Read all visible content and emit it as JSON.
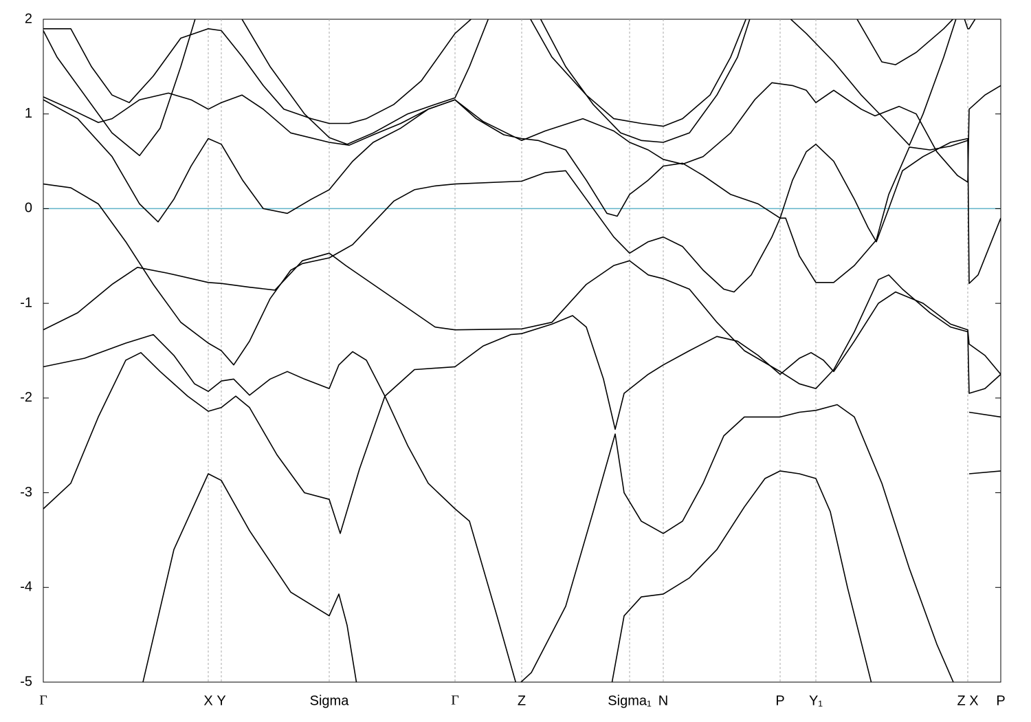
{
  "chart_data": {
    "type": "line",
    "color": "#000000",
    "hline": 0,
    "hline_color": "#5fb3c8",
    "grid": true,
    "xlim": [
      0,
      1393
    ],
    "ylim": [
      -5,
      2
    ],
    "yticks": [
      -5,
      -4,
      -3,
      -2,
      -1,
      0,
      1,
      2
    ],
    "xticks": [
      {
        "value": 0,
        "label": "Γ"
      },
      {
        "value": 240,
        "label": "X"
      },
      {
        "value": 259,
        "label": "Y"
      },
      {
        "value": 416,
        "label": "Sigma"
      },
      {
        "value": 599,
        "label": "Γ"
      },
      {
        "value": 696,
        "label": "Z"
      },
      {
        "value": 853,
        "label": "Sigma₁"
      },
      {
        "value": 902,
        "label": "N"
      },
      {
        "value": 1072,
        "label": "P"
      },
      {
        "value": 1124,
        "label": "Y₁"
      },
      {
        "value": 1345,
        "label": "Z X"
      },
      {
        "value": 1393,
        "label": "P"
      }
    ],
    "series": [
      {
        "x": [
          145,
          190,
          240,
          259,
          300,
          360,
          416,
          430,
          442,
          460
        ],
        "values": [
          -5,
          -3.6,
          -2.8,
          -2.87,
          -3.4,
          -4.05,
          -4.3,
          -4.07,
          -4.4,
          -5.2
        ]
      },
      {
        "x": [
          0,
          40,
          80,
          120,
          142,
          170,
          210,
          240,
          259,
          280,
          300,
          340,
          380,
          416,
          432,
          460,
          497,
          540,
          599
        ],
        "values": [
          -3.17,
          -2.9,
          -2.2,
          -1.6,
          -1.52,
          -1.72,
          -1.98,
          -2.14,
          -2.1,
          -1.98,
          -2.1,
          -2.6,
          -3.0,
          -3.07,
          -3.43,
          -2.75,
          -1.98,
          -1.7,
          -1.67
        ]
      },
      {
        "x": [
          0,
          60,
          120,
          160,
          190,
          220,
          240,
          259,
          277,
          300,
          330,
          355,
          380,
          416,
          430,
          450,
          470,
          497,
          530,
          560,
          599,
          620,
          660,
          695
        ],
        "values": [
          -1.67,
          -1.58,
          -1.42,
          -1.33,
          -1.55,
          -1.85,
          -1.93,
          -1.82,
          -1.8,
          -1.97,
          -1.8,
          -1.72,
          -1.8,
          -1.9,
          -1.65,
          -1.51,
          -1.6,
          -1.98,
          -2.5,
          -2.9,
          -3.17,
          -3.3,
          -4.3,
          -5.2
        ]
      },
      {
        "x": [
          599,
          640,
          680,
          696,
          740,
          770,
          790,
          815,
          832,
          845,
          880,
          902,
          940,
          980,
          1010,
          1040,
          1072,
          1100,
          1117,
          1135,
          1150,
          1180,
          1215,
          1240,
          1280,
          1320,
          1345,
          1347,
          1370,
          1393
        ],
        "values": [
          -1.67,
          -1.45,
          -1.33,
          -1.32,
          -1.22,
          -1.13,
          -1.25,
          -1.8,
          -2.33,
          -1.95,
          -1.75,
          -1.65,
          -1.5,
          -1.35,
          -1.4,
          -1.55,
          -1.75,
          -1.58,
          -1.52,
          -1.6,
          -1.72,
          -1.4,
          -1.0,
          -0.88,
          -1.0,
          -1.22,
          -1.28,
          -1.43,
          -1.55,
          -1.75
        ]
      },
      {
        "x": [
          599,
          696,
          740,
          790,
          830,
          853,
          880,
          902,
          940,
          980,
          1020,
          1072,
          1100,
          1124,
          1150,
          1180,
          1215,
          1230,
          1250,
          1290,
          1320,
          1345,
          1347,
          1370,
          1393
        ],
        "values": [
          -1.28,
          -1.27,
          -1.2,
          -0.8,
          -0.6,
          -0.55,
          -0.7,
          -0.74,
          -0.85,
          -1.2,
          -1.5,
          -1.72,
          -1.85,
          -1.9,
          -1.7,
          -1.3,
          -0.75,
          -0.7,
          -0.85,
          -1.1,
          -1.25,
          -1.3,
          -1.95,
          -1.9,
          -1.75
        ]
      },
      {
        "x": [
          825,
          845,
          870,
          902,
          940,
          980,
          1020,
          1050,
          1072,
          1100,
          1124,
          1145,
          1170,
          1208
        ],
        "values": [
          -5.1,
          -4.3,
          -4.1,
          -4.07,
          -3.9,
          -3.6,
          -3.15,
          -2.85,
          -2.77,
          -2.8,
          -2.85,
          -3.2,
          -4.0,
          -5.1
        ]
      },
      {
        "x": [
          680,
          710,
          760,
          800,
          832,
          845,
          870,
          902,
          930,
          960,
          990,
          1020,
          1072,
          1100,
          1124,
          1155,
          1180,
          1220,
          1260,
          1300,
          1330
        ],
        "values": [
          -5.1,
          -4.9,
          -4.2,
          -3.2,
          -2.38,
          -3.0,
          -3.3,
          -3.43,
          -3.3,
          -2.9,
          -2.4,
          -2.2,
          -2.2,
          -2.15,
          -2.13,
          -2.07,
          -2.2,
          -2.9,
          -3.8,
          -4.6,
          -5.1
        ]
      },
      {
        "x": [
          1347,
          1393
        ],
        "values": [
          -2.15,
          -2.2
        ]
      },
      {
        "x": [
          1347,
          1393
        ],
        "values": [
          -2.8,
          -2.77
        ]
      },
      {
        "x": [
          0,
          40,
          80,
          120,
          160,
          200,
          240,
          259,
          277,
          300,
          330,
          360,
          377,
          416,
          450,
          480,
          510,
          540,
          570,
          599,
          696,
          730,
          760,
          790,
          810,
          830,
          853,
          880,
          902,
          930,
          960,
          990,
          1005,
          1030,
          1060,
          1072,
          1090,
          1110,
          1124,
          1150,
          1180,
          1200,
          1212,
          1230,
          1250,
          1280,
          1320,
          1345,
          1347,
          1360,
          1393
        ],
        "values": [
          0.26,
          0.22,
          0.05,
          -0.35,
          -0.8,
          -1.2,
          -1.42,
          -1.5,
          -1.65,
          -1.4,
          -0.95,
          -0.65,
          -0.58,
          -0.52,
          -0.38,
          -0.15,
          0.08,
          0.2,
          0.24,
          0.26,
          0.29,
          0.38,
          0.4,
          0.1,
          -0.1,
          -0.3,
          -0.47,
          -0.35,
          -0.3,
          -0.4,
          -0.65,
          -0.85,
          -0.88,
          -0.7,
          -0.3,
          -0.1,
          0.3,
          0.6,
          0.68,
          0.5,
          0.1,
          -0.2,
          -0.35,
          0.0,
          0.4,
          0.55,
          0.7,
          0.74,
          -0.79,
          -0.7,
          -0.1
        ]
      },
      {
        "x": [
          0,
          50,
          100,
          137,
          180,
          240,
          259,
          300,
          337,
          377,
          416,
          440,
          490,
          530,
          570,
          599
        ],
        "values": [
          -1.28,
          -1.1,
          -0.8,
          -0.62,
          -0.68,
          -0.78,
          -0.79,
          -0.83,
          -0.86,
          -0.55,
          -0.47,
          -0.6,
          -0.85,
          -1.05,
          -1.25,
          -1.28
        ]
      },
      {
        "x": [
          0,
          50,
          100,
          140,
          167,
          190,
          215,
          240,
          259,
          290,
          320,
          355,
          390,
          416,
          450,
          480,
          520,
          560,
          599,
          630,
          670,
          696,
          720,
          760,
          790,
          820,
          835,
          853,
          880,
          902,
          930,
          960,
          1000,
          1040,
          1072,
          1080,
          1100,
          1124,
          1150,
          1180,
          1212,
          1230,
          1260,
          1290,
          1320,
          1345
        ],
        "values": [
          1.15,
          0.95,
          0.55,
          0.05,
          -0.14,
          0.1,
          0.45,
          0.74,
          0.68,
          0.3,
          0.0,
          -0.05,
          0.1,
          0.2,
          0.5,
          0.7,
          0.85,
          1.05,
          1.15,
          0.95,
          0.78,
          0.74,
          0.72,
          0.62,
          0.3,
          -0.05,
          -0.08,
          0.15,
          0.3,
          0.45,
          0.48,
          0.35,
          0.15,
          0.05,
          -0.1,
          -0.1,
          -0.5,
          -0.78,
          -0.78,
          -0.6,
          -0.33,
          0.15,
          0.65,
          0.62,
          0.66,
          0.72
        ]
      },
      {
        "x": [
          0,
          20,
          60,
          100,
          140,
          170,
          200,
          225
        ],
        "values": [
          1.88,
          1.6,
          1.2,
          0.8,
          0.56,
          0.85,
          1.5,
          2.1
        ]
      },
      {
        "x": [
          0,
          40,
          70,
          100,
          125,
          160,
          200,
          240,
          259,
          290,
          320,
          350,
          390,
          416,
          445,
          470,
          510,
          550,
          599,
          630
        ],
        "values": [
          1.9,
          1.9,
          1.5,
          1.2,
          1.12,
          1.4,
          1.8,
          1.9,
          1.88,
          1.6,
          1.3,
          1.05,
          0.95,
          0.9,
          0.9,
          0.95,
          1.1,
          1.35,
          1.85,
          2.05
        ]
      },
      {
        "x": [
          0,
          40,
          80,
          100,
          140,
          182,
          215,
          240,
          259,
          289,
          320,
          360,
          416,
          445,
          480,
          520,
          560,
          599,
          640,
          696,
          730,
          785,
          830,
          853,
          880,
          902,
          930,
          960,
          1000,
          1035,
          1060,
          1090,
          1110,
          1124,
          1150,
          1190,
          1210,
          1245,
          1270,
          1300,
          1330,
          1345,
          1347,
          1370,
          1393
        ],
        "values": [
          1.18,
          1.05,
          0.91,
          0.95,
          1.15,
          1.22,
          1.15,
          1.05,
          1.12,
          1.2,
          1.05,
          0.8,
          0.7,
          0.67,
          0.78,
          0.9,
          1.05,
          1.15,
          0.92,
          0.72,
          0.82,
          0.95,
          0.82,
          0.7,
          0.62,
          0.52,
          0.47,
          0.55,
          0.8,
          1.15,
          1.33,
          1.3,
          1.25,
          1.12,
          1.25,
          1.05,
          0.98,
          1.08,
          1.0,
          0.6,
          0.35,
          0.28,
          1.05,
          1.2,
          1.3
        ]
      },
      {
        "x": [
          285,
          330,
          380,
          416,
          442,
          480,
          530,
          570,
          599,
          620,
          650
        ],
        "values": [
          2.05,
          1.5,
          1.0,
          0.75,
          0.68,
          0.8,
          1.0,
          1.1,
          1.17,
          1.5,
          2.05
        ]
      },
      {
        "x": [
          705,
          740,
          790,
          830,
          870,
          902,
          930,
          970,
          1000,
          1025
        ],
        "values": [
          2.05,
          1.6,
          1.2,
          0.95,
          0.9,
          0.87,
          0.95,
          1.2,
          1.6,
          2.05
        ]
      },
      {
        "x": [
          720,
          760,
          800,
          840,
          870,
          902,
          940,
          980,
          1010,
          1030
        ],
        "values": [
          2.05,
          1.5,
          1.1,
          0.8,
          0.72,
          0.7,
          0.8,
          1.2,
          1.6,
          2.05
        ]
      },
      {
        "x": [
          1180,
          1200,
          1220,
          1240,
          1270,
          1310,
          1330
        ],
        "values": [
          2.05,
          1.8,
          1.55,
          1.52,
          1.65,
          1.9,
          2.05
        ]
      },
      {
        "x": [
          1080,
          1110,
          1150,
          1190,
          1230,
          1260,
          1280,
          1310,
          1330
        ],
        "values": [
          2.05,
          1.85,
          1.55,
          1.2,
          0.9,
          0.67,
          1.0,
          1.6,
          2.05
        ]
      },
      {
        "x": [
          1338,
          1345,
          1347,
          1360
        ],
        "values": [
          2.05,
          1.9,
          1.9,
          2.05
        ]
      }
    ]
  }
}
